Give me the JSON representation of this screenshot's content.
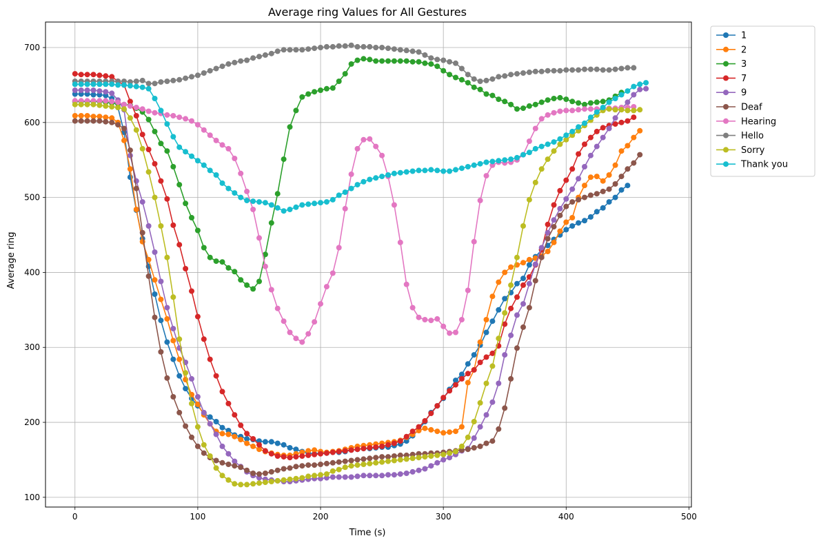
{
  "chart_data": {
    "type": "line",
    "title": "Average ring Values for All Gestures",
    "xlabel": "Time (s)",
    "ylabel": "Average ring",
    "xlim": [
      -24,
      502
    ],
    "ylim": [
      87,
      734
    ],
    "xticks": [
      0,
      100,
      200,
      300,
      400,
      500
    ],
    "yticks": [
      100,
      200,
      300,
      400,
      500,
      600,
      700
    ],
    "grid": true,
    "legend_position": "outside-right",
    "series": [
      {
        "name": "1",
        "color": "#1f77b4",
        "x_start": 0,
        "x_step": 5,
        "values": [
          638,
          638,
          638,
          637,
          637,
          636,
          632,
          620,
          587,
          527,
          483,
          445,
          408,
          371,
          336,
          307,
          284,
          262,
          245,
          232,
          222,
          212,
          207,
          201,
          193,
          189,
          183,
          181,
          178,
          177,
          175,
          174,
          174,
          172,
          170,
          166,
          164,
          161,
          159,
          158,
          159,
          159,
          160,
          160,
          161,
          163,
          164,
          165,
          165,
          166,
          167,
          167,
          169,
          171,
          175,
          182,
          190,
          201,
          213,
          222,
          232,
          244,
          256,
          264,
          278,
          290,
          303,
          320,
          335,
          350,
          365,
          373,
          385,
          392,
          410,
          421,
          430,
          436,
          444,
          450,
          457,
          462,
          466,
          469,
          474,
          481,
          486,
          494,
          500,
          510,
          516
        ]
      },
      {
        "name": "2",
        "color": "#ff7f0e",
        "x_start": 0,
        "x_step": 5,
        "values": [
          609,
          609,
          609,
          608,
          608,
          607,
          606,
          600,
          576,
          538,
          484,
          441,
          417,
          390,
          364,
          338,
          309,
          284,
          257,
          237,
          224,
          210,
          198,
          188,
          185,
          184,
          181,
          177,
          172,
          168,
          164,
          161,
          159,
          157,
          156,
          156,
          158,
          160,
          162,
          163,
          161,
          160,
          161,
          162,
          164,
          166,
          168,
          169,
          170,
          171,
          172,
          173,
          174,
          176,
          180,
          184,
          189,
          192,
          190,
          188,
          186,
          187,
          188,
          194,
          253,
          270,
          307,
          337,
          368,
          387,
          400,
          407,
          410,
          413,
          417,
          419,
          422,
          428,
          440,
          455,
          467,
          473,
          500,
          516,
          527,
          528,
          522,
          530,
          543,
          562,
          569,
          580,
          589
        ]
      },
      {
        "name": "3",
        "color": "#2ca02c",
        "x_start": 0,
        "x_step": 5,
        "values": [
          628,
          628,
          628,
          628,
          628,
          627,
          626,
          625,
          624,
          623,
          619,
          614,
          604,
          588,
          572,
          562,
          541,
          517,
          492,
          473,
          456,
          433,
          420,
          415,
          414,
          406,
          401,
          390,
          383,
          378,
          388,
          424,
          466,
          505,
          551,
          594,
          616,
          634,
          638,
          641,
          643,
          645,
          646,
          655,
          665,
          678,
          683,
          685,
          684,
          682,
          682,
          682,
          682,
          682,
          682,
          681,
          681,
          679,
          678,
          675,
          669,
          664,
          660,
          657,
          653,
          647,
          644,
          638,
          636,
          631,
          628,
          624,
          618,
          619,
          622,
          624,
          627,
          630,
          632,
          633,
          631,
          628,
          626,
          624,
          626,
          627,
          628,
          630,
          635,
          640
        ]
      },
      {
        "name": "7",
        "color": "#d62728",
        "x_start": 0,
        "x_step": 5,
        "values": [
          665,
          664,
          664,
          664,
          663,
          662,
          661,
          655,
          650,
          628,
          609,
          584,
          564,
          545,
          522,
          498,
          463,
          437,
          405,
          375,
          341,
          311,
          284,
          262,
          241,
          225,
          210,
          196,
          185,
          178,
          170,
          162,
          158,
          155,
          154,
          153,
          154,
          155,
          156,
          157,
          158,
          159,
          160,
          161,
          162,
          163,
          164,
          165,
          166,
          167,
          168,
          170,
          172,
          175,
          181,
          188,
          194,
          202,
          212,
          222,
          233,
          242,
          250,
          258,
          265,
          270,
          280,
          287,
          292,
          302,
          331,
          352,
          367,
          383,
          394,
          410,
          430,
          464,
          490,
          509,
          523,
          538,
          558,
          571,
          580,
          588,
          593,
          596,
          598,
          600,
          602,
          607
        ]
      },
      {
        "name": "9",
        "color": "#9467bd",
        "x_start": 0,
        "x_step": 5,
        "values": [
          643,
          643,
          643,
          643,
          642,
          641,
          639,
          630,
          617,
          556,
          522,
          494,
          462,
          427,
          388,
          353,
          325,
          299,
          280,
          258,
          234,
          213,
          198,
          184,
          168,
          158,
          148,
          141,
          134,
          129,
          126,
          124,
          123,
          122,
          121,
          121,
          122,
          123,
          124,
          125,
          125,
          126,
          127,
          127,
          127,
          127,
          128,
          129,
          129,
          129,
          129,
          130,
          130,
          131,
          132,
          134,
          136,
          138,
          142,
          146,
          150,
          153,
          157,
          162,
          165,
          179,
          194,
          210,
          227,
          252,
          290,
          316,
          343,
          358,
          385,
          411,
          433,
          453,
          470,
          485,
          498,
          511,
          525,
          541,
          556,
          568,
          580,
          592,
          606,
          618,
          627,
          637,
          644,
          645
        ]
      },
      {
        "name": "Deaf",
        "color": "#8c564b",
        "x_start": 0,
        "x_step": 5,
        "values": [
          602,
          602,
          602,
          602,
          602,
          601,
          600,
          597,
          592,
          563,
          512,
          453,
          395,
          340,
          294,
          259,
          234,
          213,
          195,
          180,
          168,
          159,
          153,
          149,
          146,
          144,
          142,
          140,
          136,
          132,
          131,
          132,
          134,
          136,
          138,
          139,
          141,
          142,
          143,
          143,
          144,
          145,
          146,
          147,
          148,
          149,
          150,
          151,
          152,
          153,
          154,
          154,
          155,
          156,
          156,
          157,
          158,
          158,
          159,
          159,
          160,
          161,
          162,
          163,
          164,
          166,
          168,
          172,
          175,
          191,
          219,
          258,
          299,
          327,
          353,
          389,
          420,
          445,
          461,
          476,
          488,
          494,
          497,
          500,
          503,
          505,
          508,
          511,
          518,
          528,
          538,
          546,
          557
        ]
      },
      {
        "name": "Hearing",
        "color": "#e377c2",
        "x_start": 0,
        "x_step": 5,
        "values": [
          629,
          629,
          629,
          629,
          629,
          629,
          628,
          627,
          624,
          622,
          620,
          618,
          615,
          613,
          612,
          610,
          609,
          607,
          605,
          602,
          597,
          590,
          583,
          576,
          570,
          565,
          552,
          532,
          508,
          484,
          446,
          408,
          377,
          352,
          335,
          320,
          312,
          307,
          318,
          334,
          358,
          381,
          399,
          433,
          485,
          531,
          565,
          577,
          578,
          568,
          556,
          528,
          490,
          440,
          384,
          353,
          340,
          337,
          336,
          338,
          328,
          319,
          320,
          337,
          376,
          441,
          496,
          529,
          543,
          547,
          546,
          547,
          550,
          557,
          575,
          592,
          605,
          610,
          613,
          615,
          616,
          616,
          617,
          618,
          618,
          618,
          619,
          619,
          619,
          620,
          620,
          621
        ]
      },
      {
        "name": "Hello",
        "color": "#7f7f7f",
        "x_start": 0,
        "x_step": 5,
        "values": [
          655,
          655,
          655,
          655,
          655,
          655,
          655,
          655,
          655,
          654,
          655,
          656,
          652,
          652,
          654,
          655,
          656,
          657,
          659,
          661,
          663,
          666,
          669,
          672,
          675,
          678,
          680,
          682,
          683,
          686,
          688,
          690,
          692,
          695,
          697,
          697,
          697,
          697,
          698,
          699,
          700,
          701,
          701,
          702,
          702,
          703,
          701,
          701,
          701,
          700,
          700,
          699,
          698,
          697,
          696,
          695,
          694,
          690,
          686,
          684,
          683,
          681,
          679,
          672,
          664,
          658,
          655,
          656,
          658,
          661,
          662,
          664,
          665,
          666,
          667,
          668,
          668,
          669,
          669,
          669,
          670,
          670,
          670,
          671,
          671,
          671,
          670,
          670,
          671,
          672,
          673,
          673
        ]
      },
      {
        "name": "Sorry",
        "color": "#bcbd22",
        "x_start": 0,
        "x_step": 5,
        "values": [
          624,
          624,
          624,
          624,
          623,
          622,
          621,
          620,
          618,
          606,
          590,
          565,
          534,
          500,
          462,
          420,
          367,
          311,
          266,
          225,
          194,
          170,
          155,
          139,
          129,
          123,
          118,
          117,
          117,
          118,
          119,
          120,
          121,
          122,
          123,
          124,
          125,
          126,
          128,
          129,
          130,
          131,
          135,
          137,
          140,
          142,
          143,
          144,
          145,
          146,
          147,
          148,
          149,
          150,
          151,
          152,
          153,
          154,
          155,
          156,
          157,
          159,
          161,
          168,
          180,
          201,
          226,
          252,
          275,
          312,
          346,
          383,
          420,
          462,
          497,
          520,
          538,
          551,
          562,
          571,
          577,
          583,
          589,
          596,
          603,
          610,
          616,
          618,
          617,
          617,
          616,
          616,
          617
        ]
      },
      {
        "name": "Thank you",
        "color": "#17becf",
        "x_start": 0,
        "x_step": 5,
        "values": [
          651,
          651,
          651,
          651,
          651,
          651,
          651,
          650,
          650,
          649,
          648,
          647,
          645,
          632,
          616,
          598,
          581,
          567,
          561,
          555,
          549,
          543,
          536,
          530,
          519,
          512,
          506,
          500,
          496,
          495,
          494,
          493,
          490,
          486,
          482,
          484,
          487,
          490,
          491,
          492,
          493,
          494,
          497,
          503,
          507,
          512,
          517,
          521,
          524,
          526,
          528,
          530,
          532,
          533,
          534,
          535,
          536,
          536,
          537,
          536,
          535,
          535,
          537,
          539,
          541,
          543,
          545,
          547,
          548,
          549,
          550,
          551,
          553,
          557,
          560,
          565,
          568,
          571,
          574,
          578,
          583,
          588,
          594,
          599,
          607,
          614,
          620,
          627,
          632,
          637,
          642,
          648,
          651,
          653
        ]
      }
    ]
  }
}
